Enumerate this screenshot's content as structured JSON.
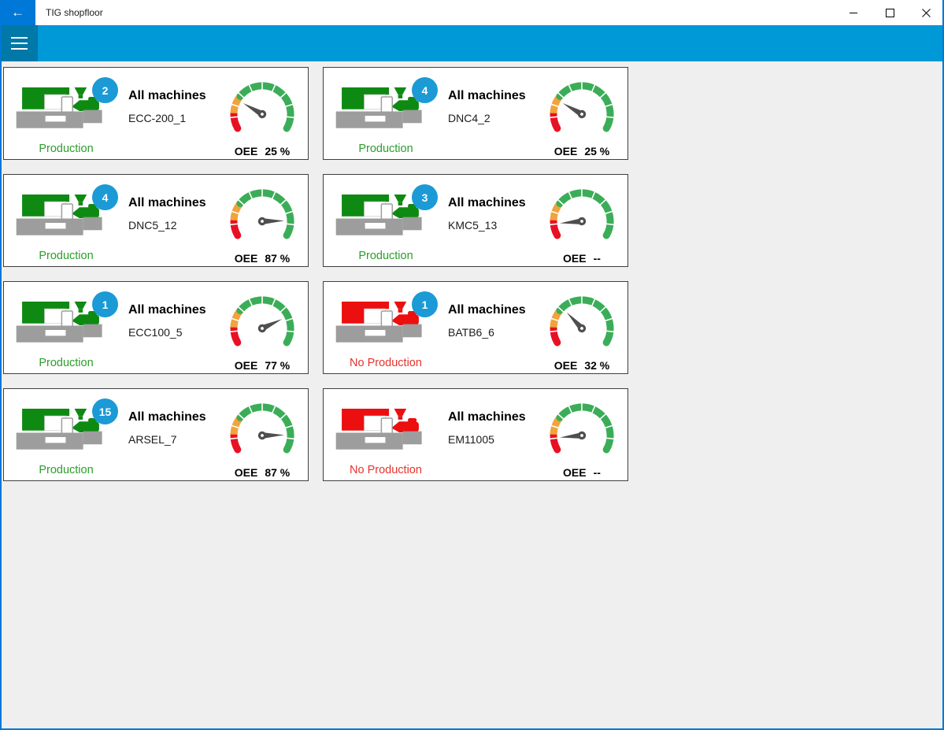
{
  "window": {
    "title": "TIG shopfloor",
    "back_icon": "←",
    "controls": {
      "minimize": "minimize",
      "maximize": "maximize",
      "close": "close"
    }
  },
  "appbar": {
    "menu_icon": "hamburger"
  },
  "cards": [
    {
      "title": "All machines",
      "name": "ECC-200_1",
      "badge": "2",
      "status": "Production",
      "running": true,
      "oee": 25,
      "oee_label": "OEE",
      "oee_text": "25 %"
    },
    {
      "title": "All machines",
      "name": "DNC4_2",
      "badge": "4",
      "status": "Production",
      "running": true,
      "oee": 25,
      "oee_label": "OEE",
      "oee_text": "25 %"
    },
    {
      "title": "All machines",
      "name": "DNC5_12",
      "badge": "4",
      "status": "Production",
      "running": true,
      "oee": 87,
      "oee_label": "OEE",
      "oee_text": "87 %"
    },
    {
      "title": "All machines",
      "name": "KMC5_13",
      "badge": "3",
      "status": "Production",
      "running": true,
      "oee": null,
      "oee_label": "OEE",
      "oee_text": "--"
    },
    {
      "title": "All machines",
      "name": "ECC100_5",
      "badge": "1",
      "status": "Production",
      "running": true,
      "oee": 77,
      "oee_label": "OEE",
      "oee_text": "77 %"
    },
    {
      "title": "All machines",
      "name": "BATB6_6",
      "badge": "1",
      "status": "No Production",
      "running": false,
      "oee": 32,
      "oee_label": "OEE",
      "oee_text": "32 %"
    },
    {
      "title": "All machines",
      "name": "ARSEL_7",
      "badge": "15",
      "status": "Production",
      "running": true,
      "oee": 87,
      "oee_label": "OEE",
      "oee_text": "87 %"
    },
    {
      "title": "All machines",
      "name": "EM11005",
      "badge": null,
      "status": "No Production",
      "running": false,
      "oee": null,
      "oee_label": "OEE",
      "oee_text": "--"
    }
  ],
  "gauge": {
    "start_angle": 210,
    "sweep": 240,
    "red_until": 13,
    "orange_until": 29,
    "null_needle_angle": 185
  },
  "colors": {
    "accent": "#0078d7",
    "appbar": "#0099d8",
    "menubtn": "#0078a8",
    "badge": "#1b9ad6",
    "green_machine": "#0e8a12",
    "red_machine": "#ec0f0f",
    "green_text": "#2b9e2b",
    "red_text": "#e8322d",
    "gauge_red": "#e81123",
    "gauge_orange": "#f2a33c",
    "gauge_green": "#3bad58",
    "needle": "#4f4f4f",
    "base_gray": "#9d9d9d"
  }
}
